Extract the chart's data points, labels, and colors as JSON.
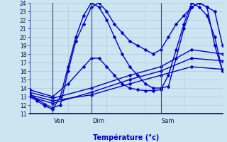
{
  "xlabel": "Température (°c)",
  "ylim": [
    11,
    24
  ],
  "yticks": [
    11,
    12,
    13,
    14,
    15,
    16,
    17,
    18,
    19,
    20,
    21,
    22,
    23,
    24
  ],
  "background_color": "#cce5f0",
  "grid_color": "#aacce0",
  "line_color": "#0000cc",
  "markersize": 2.5,
  "linewidth": 1.0,
  "xlim": [
    0.0,
    1.0
  ],
  "vlines": [
    0.12,
    0.32,
    0.68
  ],
  "vline_labels": [
    "Ven",
    "Dim",
    "Sam"
  ],
  "vline_label_offsets": [
    0.005,
    0.005,
    0.005
  ],
  "lines": [
    {
      "x": [
        0.0,
        0.04,
        0.08,
        0.12,
        0.16,
        0.2,
        0.24,
        0.28,
        0.32,
        0.36,
        0.4,
        0.44,
        0.48,
        0.52,
        0.56,
        0.6,
        0.64,
        0.68,
        0.72,
        0.76,
        0.8,
        0.84,
        0.88,
        0.92,
        0.96,
        1.0
      ],
      "y": [
        13.3,
        12.7,
        12.1,
        11.7,
        12.0,
        16.0,
        19.5,
        21.5,
        23.5,
        24.0,
        23.0,
        21.5,
        20.5,
        19.5,
        19.0,
        18.5,
        18.0,
        18.5,
        20.0,
        21.5,
        22.5,
        23.5,
        24.0,
        23.5,
        23.0,
        19.0
      ]
    },
    {
      "x": [
        0.0,
        0.04,
        0.08,
        0.12,
        0.16,
        0.2,
        0.24,
        0.28,
        0.32,
        0.36,
        0.4,
        0.44,
        0.48,
        0.52,
        0.56,
        0.6,
        0.64,
        0.68,
        0.72,
        0.76,
        0.8,
        0.84,
        0.88,
        0.92,
        0.96,
        1.0
      ],
      "y": [
        13.0,
        12.5,
        11.9,
        11.5,
        13.0,
        16.5,
        20.0,
        22.5,
        24.0,
        23.5,
        22.0,
        20.0,
        18.0,
        16.5,
        15.5,
        14.5,
        14.0,
        14.0,
        14.2,
        17.5,
        21.0,
        23.5,
        24.0,
        23.5,
        19.0,
        16.0
      ]
    },
    {
      "x": [
        0.0,
        0.12,
        0.32,
        0.52,
        0.68,
        0.84,
        1.0
      ],
      "y": [
        13.2,
        12.5,
        13.2,
        14.5,
        15.5,
        16.5,
        16.2
      ]
    },
    {
      "x": [
        0.0,
        0.12,
        0.32,
        0.52,
        0.68,
        0.84,
        1.0
      ],
      "y": [
        13.0,
        12.2,
        13.5,
        15.0,
        16.0,
        17.5,
        17.2
      ]
    },
    {
      "x": [
        0.0,
        0.12,
        0.32,
        0.52,
        0.68,
        0.84,
        1.0
      ],
      "y": [
        13.5,
        12.8,
        14.0,
        15.5,
        16.5,
        18.5,
        18.0
      ]
    },
    {
      "x": [
        0.0,
        0.12,
        0.2,
        0.28,
        0.32,
        0.36,
        0.4,
        0.44,
        0.48,
        0.52,
        0.56,
        0.6,
        0.64,
        0.68,
        0.72,
        0.76,
        0.8,
        0.84,
        0.88,
        0.92,
        0.96,
        1.0
      ],
      "y": [
        13.8,
        13.0,
        14.5,
        16.5,
        17.5,
        17.5,
        16.5,
        15.5,
        14.5,
        14.0,
        13.8,
        13.7,
        13.7,
        13.8,
        15.5,
        18.5,
        21.5,
        24.0,
        23.5,
        22.5,
        20.0,
        16.0
      ]
    }
  ],
  "figsize": [
    3.2,
    2.0
  ],
  "dpi": 100
}
